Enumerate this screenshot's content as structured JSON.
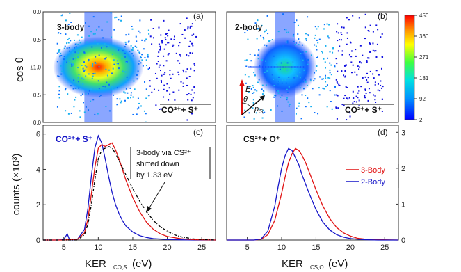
{
  "chart_data": [
    {
      "panel": "(a)",
      "type": "heatmap",
      "label": "3-body",
      "ion_label": "CO²⁺+ S⁺",
      "ylabel": "cos θ",
      "yticks": [
        "0.0",
        "0.5",
        "±1.0",
        "0.5",
        "0.0"
      ],
      "peak_x": 10,
      "peak_y": 0,
      "xlim": [
        2,
        27
      ]
    },
    {
      "panel": "(b)",
      "type": "heatmap",
      "label": "2-body",
      "ion_label": "CO²⁺+ S⁺",
      "peak_x": 10.5,
      "peak_y": 0,
      "xlim": [
        2,
        27
      ],
      "inset": {
        "field": "E",
        "angle": "θ",
        "momentum": "p",
        "momentum_sub": "S"
      }
    },
    {
      "panel": "(c)",
      "type": "line",
      "ion_label": "CO²⁺+ S⁺",
      "xlabel": "KER",
      "xlabel_sub": "CO,S",
      "xlabel_unit": "(eV)",
      "ylabel": "counts  (×10³)",
      "xlim": [
        2,
        27
      ],
      "ylim": [
        0,
        6.5
      ],
      "xticks": [
        "5",
        "10",
        "15",
        "20",
        "25"
      ],
      "yticks": [
        "0",
        "2",
        "4",
        "6"
      ],
      "annotation": [
        "3-body via CS²⁺",
        "shifted down",
        "by 1.33 eV"
      ],
      "series": [
        {
          "color": "#1414c8",
          "x": [
            2,
            4,
            5,
            5.5,
            5.8,
            6.2,
            7,
            8,
            8.5,
            9,
            9.5,
            10,
            10.5,
            11,
            11.5,
            12,
            12.5,
            13,
            13.5,
            14,
            15,
            16,
            17,
            18,
            20,
            22,
            24,
            27
          ],
          "y": [
            0,
            0,
            0.02,
            0.35,
            0.05,
            0,
            0.05,
            0.6,
            1.8,
            3.6,
            5.2,
            5.9,
            5.5,
            4.6,
            3.6,
            2.7,
            2.0,
            1.5,
            1.1,
            0.8,
            0.45,
            0.25,
            0.14,
            0.08,
            0.03,
            0.01,
            0,
            0
          ]
        },
        {
          "color": "#e01010",
          "x": [
            2,
            5,
            7,
            8,
            8.5,
            9,
            9.5,
            10,
            10.5,
            11,
            11.5,
            12,
            12.5,
            13,
            13.5,
            14,
            15,
            16,
            17,
            18,
            19,
            20,
            22,
            24,
            27
          ],
          "y": [
            0,
            0,
            0.05,
            0.4,
            1.2,
            2.6,
            4.1,
            5.2,
            5.4,
            5.3,
            5.4,
            5.5,
            5.1,
            4.6,
            4.0,
            3.4,
            2.4,
            1.6,
            1.0,
            0.6,
            0.35,
            0.2,
            0.07,
            0.02,
            0
          ]
        },
        {
          "color": "#000000",
          "x": [
            2,
            7,
            8,
            8.5,
            9,
            9.5,
            10,
            10.5,
            11,
            11.5,
            12,
            12.5,
            13,
            14,
            15,
            16,
            17,
            18,
            19,
            20,
            21,
            22,
            24,
            27
          ],
          "y": [
            0,
            0,
            0.3,
            0.9,
            2.0,
            3.4,
            4.6,
            5.1,
            5.2,
            5.3,
            5.2,
            4.9,
            4.5,
            3.7,
            2.9,
            2.2,
            1.6,
            1.1,
            0.75,
            0.5,
            0.3,
            0.18,
            0.05,
            0
          ]
        }
      ]
    },
    {
      "panel": "(d)",
      "type": "line",
      "ion_label": "CS²⁺+ O⁺",
      "xlabel": "KER",
      "xlabel_sub": "CS,O",
      "xlabel_unit": "(eV)",
      "xlim": [
        2,
        27
      ],
      "ylim": [
        0,
        3.2
      ],
      "xticks": [
        "5",
        "10",
        "15",
        "20",
        "25"
      ],
      "yticks": [
        "0",
        "1",
        "2",
        "3"
      ],
      "legend": [
        "3-Body",
        "2-Body"
      ],
      "series": [
        {
          "name": "3-Body",
          "color": "#e01010",
          "x": [
            2,
            6,
            7,
            8,
            9,
            10,
            10.5,
            11,
            11.5,
            12,
            12.5,
            13,
            13.5,
            14,
            15,
            16,
            17,
            18,
            19,
            20,
            21,
            22,
            24,
            27
          ],
          "y": [
            0,
            0,
            0.02,
            0.15,
            0.55,
            1.3,
            1.75,
            2.15,
            2.4,
            2.55,
            2.5,
            2.35,
            2.15,
            1.9,
            1.4,
            0.95,
            0.6,
            0.35,
            0.2,
            0.11,
            0.05,
            0.03,
            0.01,
            0
          ]
        },
        {
          "name": "2-Body",
          "color": "#1414c8",
          "x": [
            2,
            6,
            7,
            8,
            9,
            9.5,
            10,
            10.5,
            11,
            11.5,
            12,
            12.5,
            13,
            14,
            15,
            16,
            17,
            18,
            19,
            20,
            22,
            24,
            27
          ],
          "y": [
            0,
            0,
            0.03,
            0.25,
            0.95,
            1.5,
            2.0,
            2.35,
            2.55,
            2.5,
            2.3,
            2.1,
            1.8,
            1.3,
            0.85,
            0.5,
            0.28,
            0.15,
            0.08,
            0.04,
            0.01,
            0,
            0
          ]
        }
      ]
    }
  ],
  "colorbar": {
    "ticks": [
      "450",
      "360",
      "271",
      "181",
      "92",
      "2"
    ],
    "colors": [
      "#0000ff",
      "#0090ff",
      "#00e0e0",
      "#40ff40",
      "#ffff00",
      "#ff9000",
      "#ff0000"
    ]
  }
}
